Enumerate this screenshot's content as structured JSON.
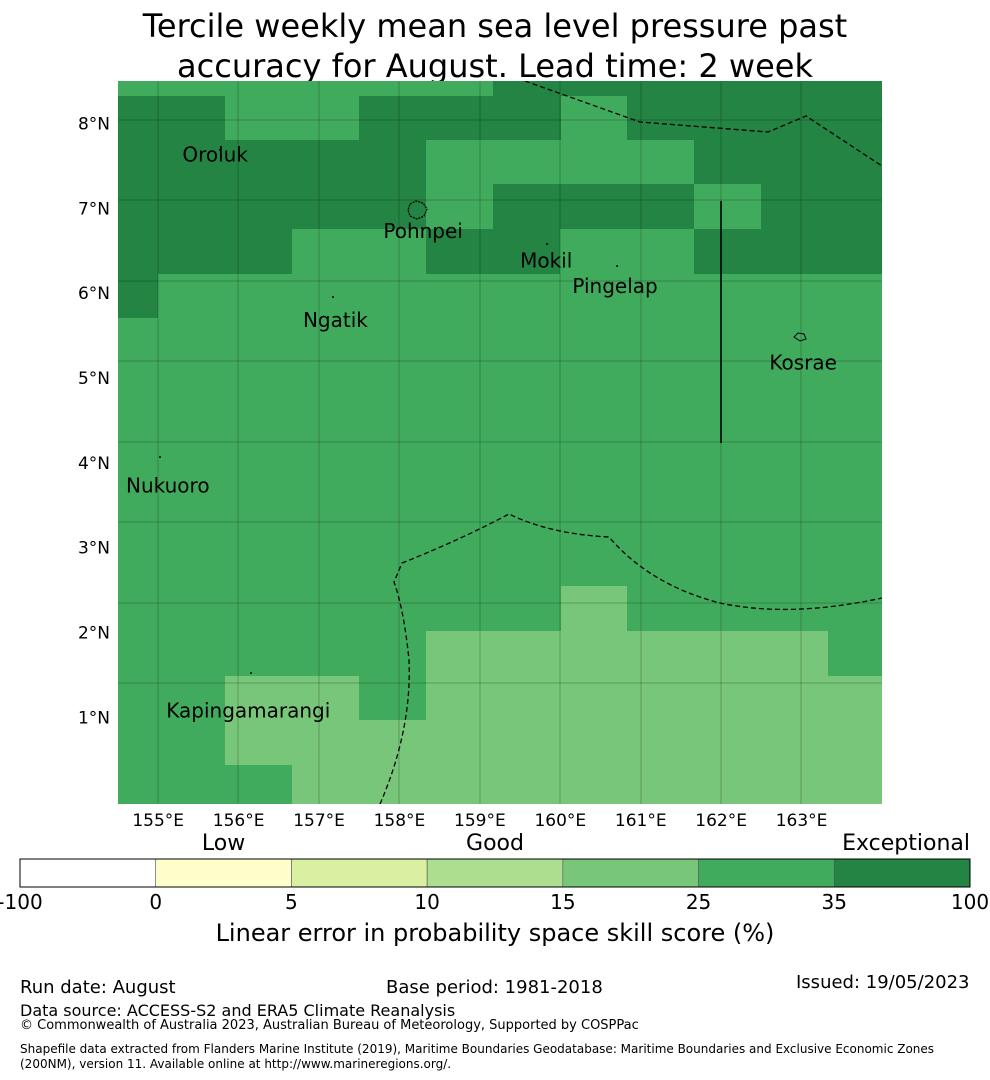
{
  "title": {
    "line1": "Tercile weekly mean sea level pressure past",
    "line2": "accuracy for August. Lead time: 2 week"
  },
  "map": {
    "lon_range": [
      154.5,
      164.0
    ],
    "lat_range": [
      -0.02,
      8.5
    ],
    "lon_ticks": [
      "155°E",
      "156°E",
      "157°E",
      "158°E",
      "159°E",
      "160°E",
      "161°E",
      "162°E",
      "163°E"
    ],
    "lat_ticks": [
      "1°N",
      "2°N",
      "3°N",
      "4°N",
      "5°N",
      "6°N",
      "7°N",
      "8°N"
    ],
    "places": [
      {
        "name": "Oroluk",
        "lon": 155.3,
        "lat": 7.55
      },
      {
        "name": "Pohnpei",
        "lon": 157.8,
        "lat": 6.65
      },
      {
        "name": "Mokil",
        "lon": 159.5,
        "lat": 6.3
      },
      {
        "name": "Pingelap",
        "lon": 160.15,
        "lat": 6.0
      },
      {
        "name": "Ngatik",
        "lon": 156.8,
        "lat": 5.6
      },
      {
        "name": "Kosrae",
        "lon": 162.6,
        "lat": 5.1
      },
      {
        "name": "Nukuoro",
        "lon": 154.6,
        "lat": 3.65
      },
      {
        "name": "Kapingamarangi",
        "lon": 155.1,
        "lat": 1.0
      }
    ]
  },
  "colorbar": {
    "categories": [
      {
        "name": "Low",
        "pos": 1.5
      },
      {
        "name": "Good",
        "pos": 3.5
      },
      {
        "name": "Exceptional",
        "pos": 6.0
      }
    ],
    "ticks": [
      "-100",
      "0",
      "5",
      "10",
      "15",
      "25",
      "35",
      "100"
    ],
    "colors": [
      "#ffffff",
      "#ffffcc",
      "#d9f0a3",
      "#addd8e",
      "#78c679",
      "#41ab5d",
      "#238443"
    ],
    "label": "Linear error in probability space skill score (%)"
  },
  "footer": {
    "run_date": "Run date: August",
    "base_period": "Base period: 1981-2018",
    "issued": "Issued: 19/05/2023",
    "source": "Data source: ACCESS-S2 and ERA5 Climate Reanalysis",
    "copyright": "© Commonwealth of Australia 2023, Australian Bureau of Meteorology, Supported by COSPPac",
    "shapefile1": "Shapefile data extracted from Flanders Marine Institute (2019), Maritime Boundaries Geodatabase: Maritime Boundaries and Exclusive Economic Zones",
    "shapefile2": "(200NM), version 11. Available online at http://www.marineregions.org/."
  }
}
